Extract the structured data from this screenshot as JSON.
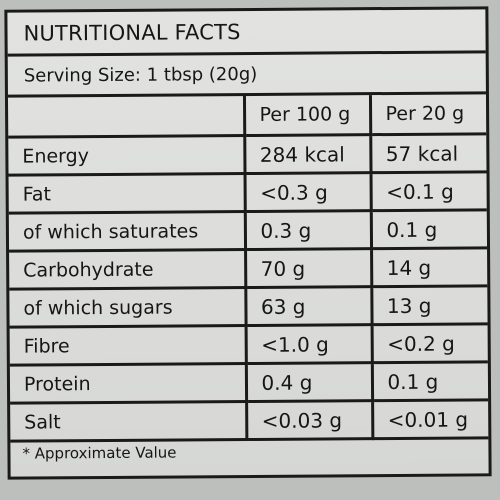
{
  "panel": {
    "title": "NUTRITIONAL FACTS",
    "serving": "Serving Size: 1 tbsp (20g)",
    "footnote": "* Approximate Value"
  },
  "table": {
    "headers": [
      "",
      "Per 100 g",
      "Per 20 g"
    ],
    "rows": [
      {
        "nutrient": "Energy",
        "per100": "284 kcal",
        "per20": "57 kcal"
      },
      {
        "nutrient": "Fat",
        "per100": "<0.3 g",
        "per20": "<0.1 g"
      },
      {
        "nutrient": "of which saturates",
        "per100": "0.3 g",
        "per20": "0.1 g"
      },
      {
        "nutrient": "Carbohydrate",
        "per100": "70 g",
        "per20": "14 g"
      },
      {
        "nutrient": "of which sugars",
        "per100": "63 g",
        "per20": "13 g"
      },
      {
        "nutrient": "Fibre",
        "per100": "<1.0 g",
        "per20": "<0.2 g"
      },
      {
        "nutrient": "Protein",
        "per100": "0.4 g",
        "per20": "0.1 g"
      },
      {
        "nutrient": "Salt",
        "per100": "<0.03 g",
        "per20": "<0.01 g"
      }
    ]
  }
}
